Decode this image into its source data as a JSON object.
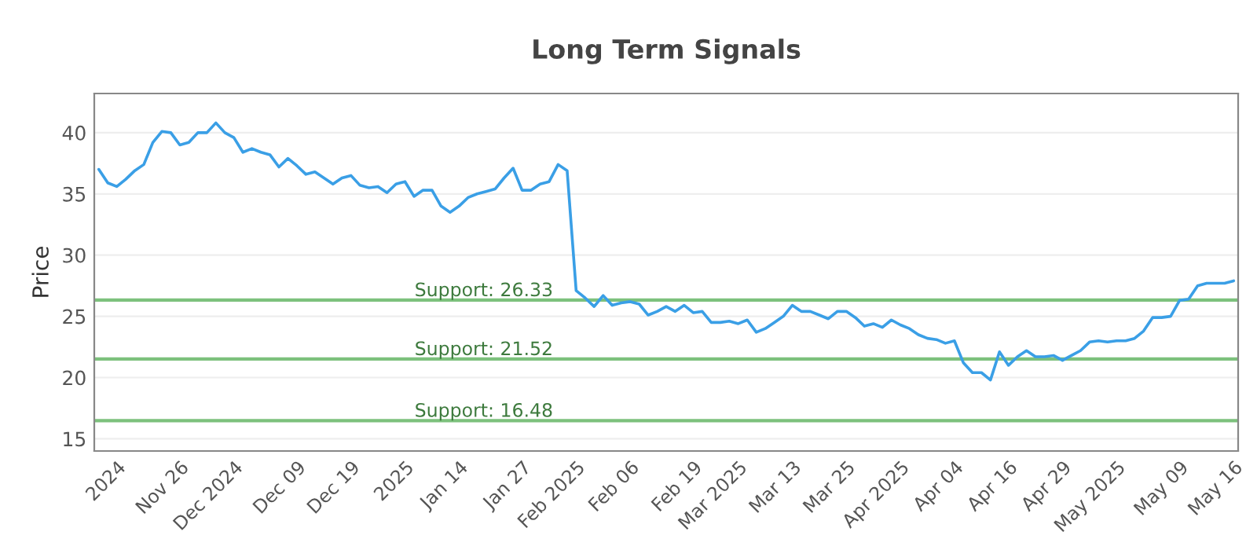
{
  "chart_data": {
    "type": "line",
    "title": "Long Term Signals",
    "ylabel": "Price",
    "categories": [
      null,
      null,
      "2024",
      null,
      null,
      null,
      null,
      null,
      null,
      "Nov 26",
      null,
      null,
      null,
      null,
      null,
      "Dec 2024",
      null,
      null,
      null,
      null,
      null,
      null,
      "Dec 09",
      null,
      null,
      null,
      null,
      null,
      "Dec 19",
      null,
      null,
      null,
      null,
      null,
      "2025",
      null,
      null,
      null,
      null,
      null,
      "Jan 14",
      null,
      null,
      null,
      null,
      null,
      null,
      "Jan 27",
      null,
      null,
      null,
      null,
      null,
      "Feb 2025",
      null,
      null,
      null,
      null,
      null,
      "Feb 06",
      null,
      null,
      null,
      null,
      null,
      null,
      "Feb 19",
      null,
      null,
      null,
      null,
      "Mar 2025",
      null,
      null,
      null,
      null,
      null,
      "Mar 13",
      null,
      null,
      null,
      null,
      null,
      "Mar 25",
      null,
      null,
      null,
      null,
      null,
      "Apr 2025",
      null,
      null,
      null,
      null,
      null,
      "Apr 04",
      null,
      null,
      null,
      null,
      null,
      "Apr 16",
      null,
      null,
      null,
      null,
      null,
      "Apr 29",
      null,
      null,
      null,
      null,
      null,
      "May 2025",
      null,
      null,
      null,
      null,
      null,
      null,
      "May 09",
      null,
      null,
      null,
      null,
      null,
      "May 16"
    ],
    "series": [
      {
        "color": "#3a9fe6",
        "values": [
          37.0,
          35.9,
          35.6,
          36.2,
          36.9,
          37.4,
          39.2,
          40.1,
          40.0,
          39.0,
          39.2,
          40.0,
          40.0,
          40.8,
          40.0,
          39.6,
          38.4,
          38.7,
          38.4,
          38.2,
          37.2,
          37.9,
          37.3,
          36.6,
          36.8,
          36.3,
          35.8,
          36.3,
          36.5,
          35.7,
          35.5,
          35.6,
          35.1,
          35.8,
          36.0,
          34.8,
          35.3,
          35.3,
          34.0,
          33.5,
          34.0,
          34.7,
          35.0,
          35.2,
          35.4,
          36.3,
          37.1,
          35.3,
          35.3,
          35.8,
          36.0,
          37.4,
          36.9,
          27.1,
          26.5,
          25.8,
          26.7,
          25.9,
          26.1,
          26.2,
          26.0,
          25.1,
          25.4,
          25.8,
          25.4,
          25.9,
          25.3,
          25.4,
          24.5,
          24.5,
          24.6,
          24.4,
          24.7,
          23.7,
          24.0,
          24.5,
          25.0,
          25.9,
          25.4,
          25.4,
          25.1,
          24.8,
          25.4,
          25.4,
          24.9,
          24.2,
          24.4,
          24.1,
          24.7,
          24.3,
          24.0,
          23.5,
          23.2,
          23.1,
          22.8,
          23.0,
          21.2,
          20.4,
          20.4,
          19.8,
          22.1,
          21.0,
          21.7,
          22.2,
          21.7,
          21.7,
          21.8,
          21.4,
          21.8,
          22.2,
          22.9,
          23.0,
          22.9,
          23.0,
          23.0,
          23.2,
          23.8,
          24.9,
          24.9,
          25.0,
          26.3,
          26.4,
          27.5,
          27.7,
          27.7,
          27.7,
          27.9
        ]
      }
    ],
    "ylim": [
      14,
      43.2
    ],
    "yticks": [
      15,
      20,
      25,
      30,
      35,
      40
    ],
    "grid": "y",
    "marker": "none",
    "line_style": "solid",
    "ref_lines": [
      {
        "axis": "y",
        "value": 26.33,
        "label": "Support: 26.33",
        "color": "#7dc17d"
      },
      {
        "axis": "y",
        "value": 21.52,
        "label": "Support: 21.52",
        "color": "#7dc17d"
      },
      {
        "axis": "y",
        "value": 16.48,
        "label": "Support: 16.48",
        "color": "#7dc17d"
      }
    ]
  }
}
